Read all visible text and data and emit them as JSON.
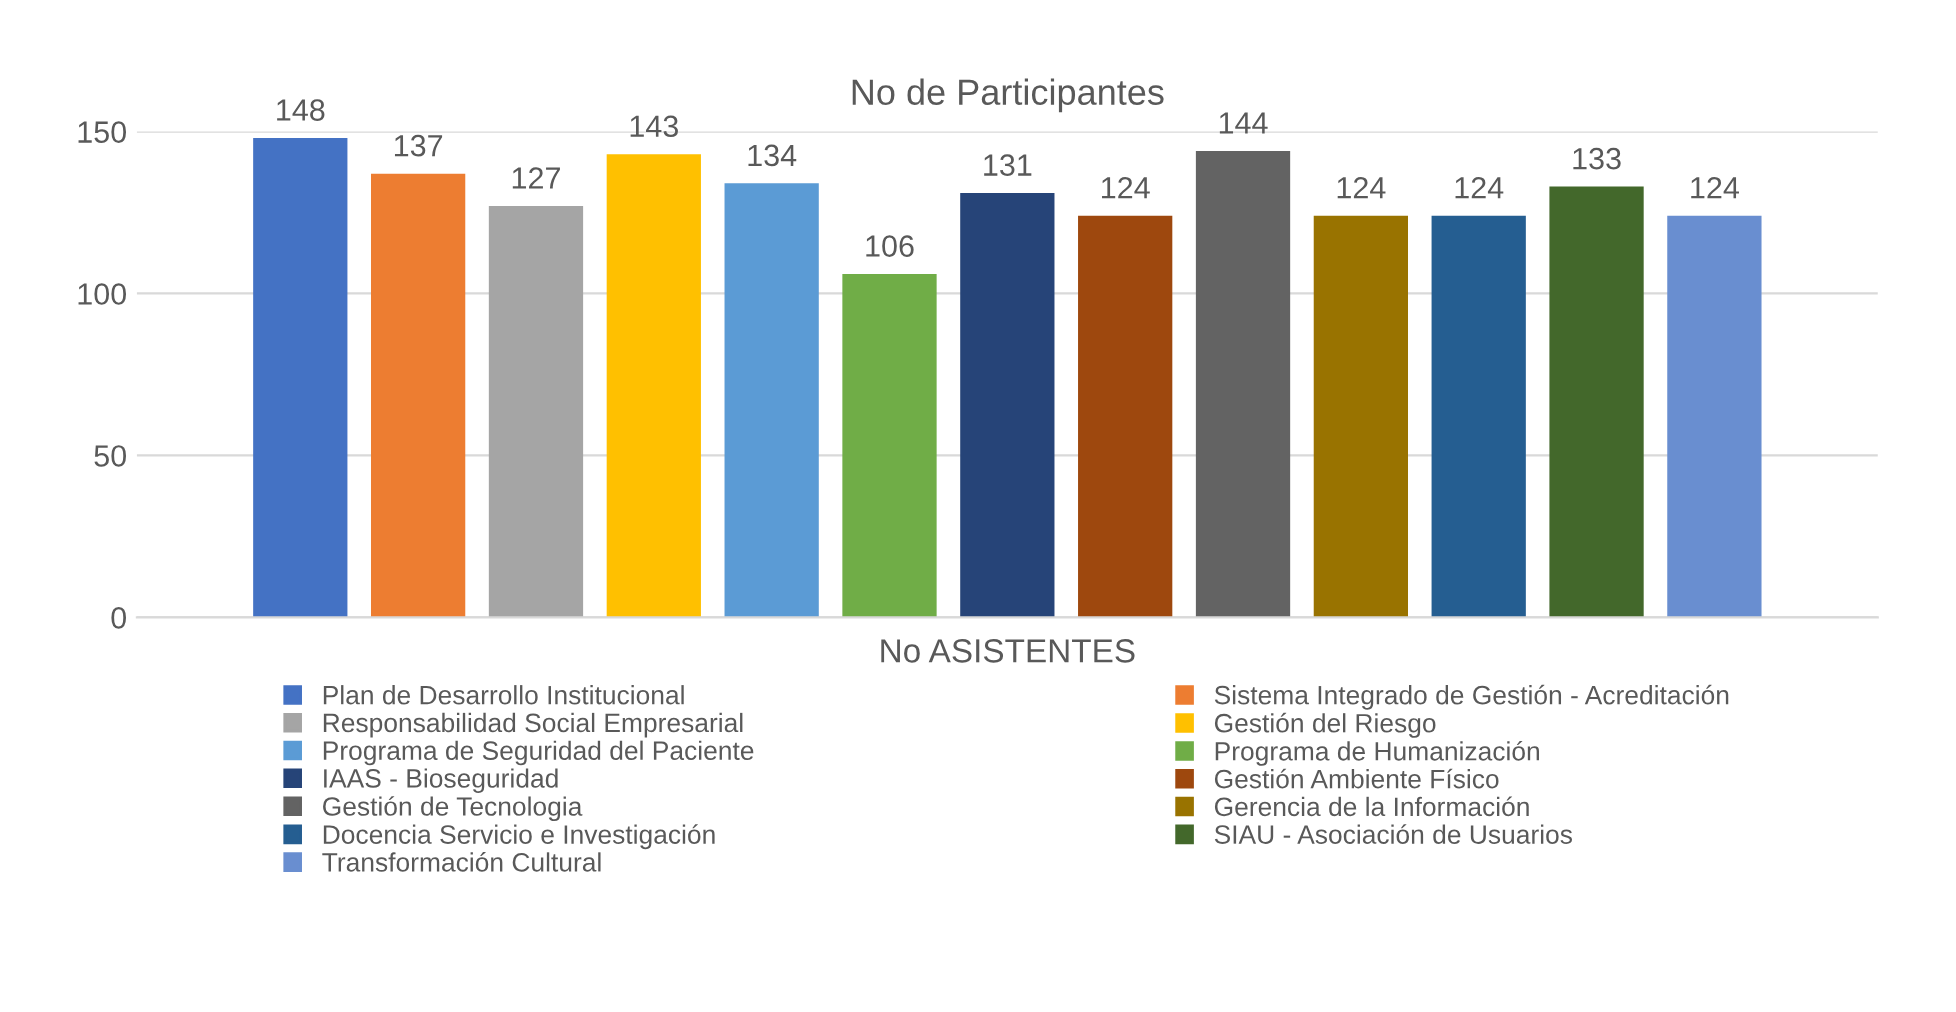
{
  "chart_data": {
    "type": "bar",
    "title": "No de Participantes",
    "xlabel": "No ASISTENTES",
    "categories": [
      null
    ],
    "series": [
      {
        "name": "Plan de Desarrollo Institucional",
        "color": "#4472c4",
        "values": [
          148
        ]
      },
      {
        "name": "Sistema Integrado de Gestión - Acreditación",
        "color": "#ed7d31",
        "values": [
          137
        ]
      },
      {
        "name": "Responsabilidad Social Empresarial",
        "color": "#a5a5a5",
        "values": [
          127
        ]
      },
      {
        "name": "Gestión del Riesgo",
        "color": "#ffc000",
        "values": [
          143
        ]
      },
      {
        "name": "Programa de Seguridad del Paciente",
        "color": "#5b9bd5",
        "values": [
          134
        ]
      },
      {
        "name": "Programa de Humanización",
        "color": "#70ad47",
        "values": [
          106
        ]
      },
      {
        "name": "IAAS - Bioseguridad",
        "color": "#264478",
        "values": [
          131
        ]
      },
      {
        "name": "Gestión Ambiente Físico",
        "color": "#9e480e",
        "values": [
          124
        ]
      },
      {
        "name": "Gestión de Tecnologia",
        "color": "#636363",
        "values": [
          144
        ]
      },
      {
        "name": "Gerencia de la Información",
        "color": "#997300",
        "values": [
          124
        ]
      },
      {
        "name": "Docencia Servicio e Investigación",
        "color": "#255e91",
        "values": [
          124
        ]
      },
      {
        "name": "SIAU - Asociación de Usuarios",
        "color": "#43682b",
        "values": [
          133
        ]
      },
      {
        "name": "Transformación Cultural",
        "color": "#698ed0",
        "values": [
          124
        ]
      }
    ],
    "ylim": [
      0,
      150
    ],
    "yticks": [
      0,
      50,
      100,
      150
    ],
    "grid": "y",
    "legend": "bottom",
    "data_labels": true
  }
}
